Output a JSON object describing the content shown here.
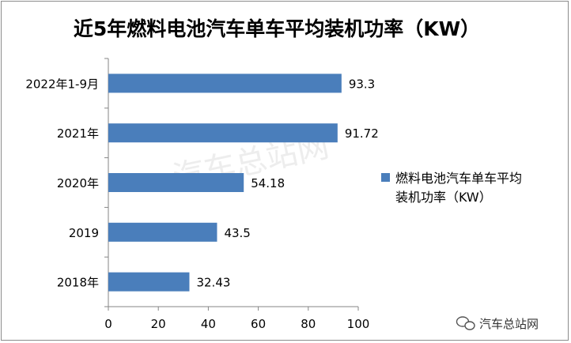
{
  "chart_data": {
    "type": "bar",
    "orientation": "horizontal",
    "title": "近5年燃料电池汽车单车平均装机功率（KW）",
    "categories": [
      "2022年1-9月",
      "2021年",
      "2020年",
      "2019",
      "2018年"
    ],
    "series": [
      {
        "name": "燃料电池汽车单车平均装机功率（KW）",
        "values": [
          93.3,
          91.72,
          54.18,
          43.5,
          32.43
        ],
        "data_labels": [
          "93.3",
          "91.72",
          "54.18",
          "43.5",
          "32.43"
        ],
        "color": "#4a7ebb"
      }
    ],
    "xlim": [
      0,
      100
    ],
    "xticks": [
      "0",
      "20",
      "40",
      "60",
      "80",
      "100"
    ],
    "xlabel": "",
    "ylabel": "",
    "grid": false,
    "legend": {
      "position": "right",
      "lines": [
        "燃料电池汽车单车平均",
        "装机功率（KW）"
      ]
    }
  },
  "watermark": {
    "center_text": "汽车总站网",
    "corner_text": "汽车总站网",
    "corner_icon": "wechat-icon"
  }
}
